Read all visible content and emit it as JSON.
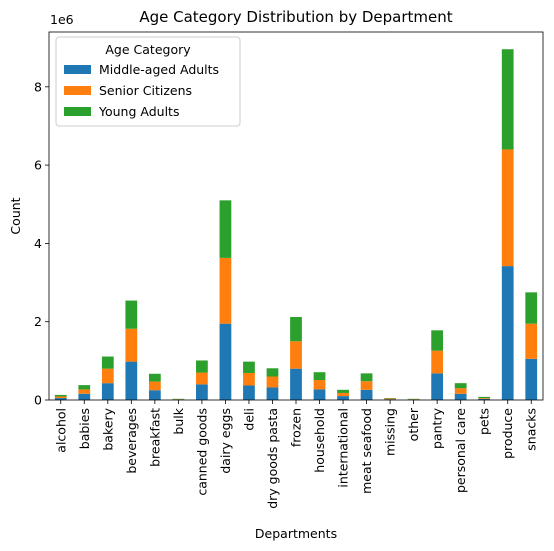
{
  "chart_data": {
    "type": "bar",
    "stacked": true,
    "title": "Age Category Distribution by Department",
    "xlabel": "Departments",
    "ylabel": "Count",
    "y_offset_label": "1e6",
    "ylim": [
      0,
      9.4
    ],
    "yticks": [
      "0",
      "2",
      "4",
      "6",
      "8"
    ],
    "ytick_values": [
      0,
      2,
      4,
      6,
      8
    ],
    "legend": {
      "title": "Age Category",
      "placement": "upper-left"
    },
    "categories": [
      "alcohol",
      "babies",
      "bakery",
      "beverages",
      "breakfast",
      "bulk",
      "canned goods",
      "dairy eggs",
      "deli",
      "dry goods pasta",
      "frozen",
      "household",
      "international",
      "meat seafood",
      "missing",
      "other",
      "pantry",
      "personal care",
      "pets",
      "produce",
      "snacks"
    ],
    "series": [
      {
        "name": "Middle-aged Adults",
        "color": "#1f77b4",
        "values": [
          0.05,
          0.16,
          0.43,
          0.98,
          0.25,
          0.01,
          0.4,
          1.95,
          0.37,
          0.32,
          0.8,
          0.27,
          0.1,
          0.26,
          0.02,
          0.01,
          0.68,
          0.16,
          0.03,
          3.42,
          1.05
        ]
      },
      {
        "name": "Senior Citizens",
        "color": "#ff7f0e",
        "values": [
          0.04,
          0.11,
          0.37,
          0.84,
          0.22,
          0.01,
          0.3,
          1.68,
          0.32,
          0.28,
          0.7,
          0.24,
          0.08,
          0.22,
          0.02,
          0.01,
          0.58,
          0.14,
          0.02,
          2.98,
          0.9
        ]
      },
      {
        "name": "Young Adults",
        "color": "#2ca02c",
        "values": [
          0.04,
          0.11,
          0.31,
          0.72,
          0.2,
          0.01,
          0.31,
          1.47,
          0.29,
          0.21,
          0.62,
          0.2,
          0.08,
          0.2,
          0.01,
          0.01,
          0.52,
          0.13,
          0.03,
          2.56,
          0.8
        ]
      }
    ]
  }
}
